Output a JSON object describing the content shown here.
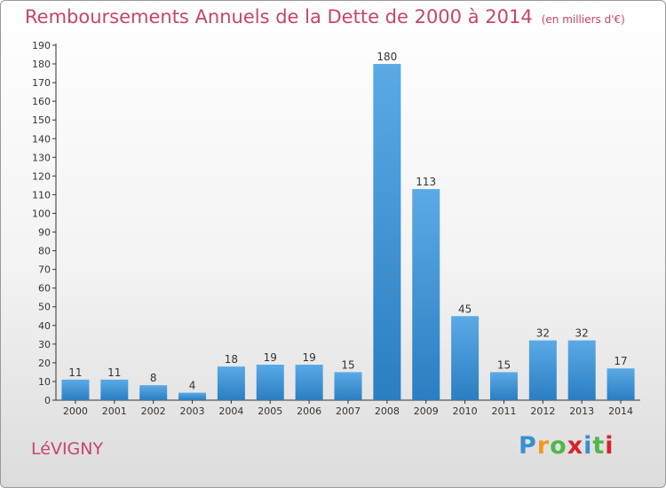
{
  "header": {
    "title": "Remboursements Annuels de la Dette de 2000 à 2014",
    "unit": "(en milliers d'€)"
  },
  "footer": {
    "commune": "LéVIGNY",
    "logo": {
      "text": "Proxiti",
      "letters": [
        "P",
        "r",
        "o",
        "x",
        "i",
        "t",
        "i"
      ],
      "colors": [
        "#3a8fd1",
        "#f29a1d",
        "#4fb848",
        "#d8232a",
        "#3a8fd1",
        "#4fb848",
        "#d8232a"
      ]
    }
  },
  "chart_data": {
    "type": "bar",
    "title": "Remboursements Annuels de la Dette de 2000 à 2014",
    "xlabel": "",
    "ylabel": "",
    "categories": [
      "2000",
      "2001",
      "2002",
      "2003",
      "2004",
      "2005",
      "2006",
      "2007",
      "2008",
      "2009",
      "2010",
      "2011",
      "2012",
      "2013",
      "2014"
    ],
    "values": [
      11,
      11,
      8,
      4,
      18,
      19,
      19,
      15,
      180,
      113,
      45,
      15,
      32,
      32,
      17
    ],
    "ylim": [
      0,
      190
    ],
    "yticks": [
      0,
      10,
      20,
      30,
      40,
      50,
      60,
      70,
      80,
      90,
      100,
      110,
      120,
      130,
      140,
      150,
      160,
      170,
      180,
      190
    ],
    "grid": false,
    "colors": {
      "bar_top": "#5aaae6",
      "bar_bottom": "#2a7ec1"
    }
  }
}
